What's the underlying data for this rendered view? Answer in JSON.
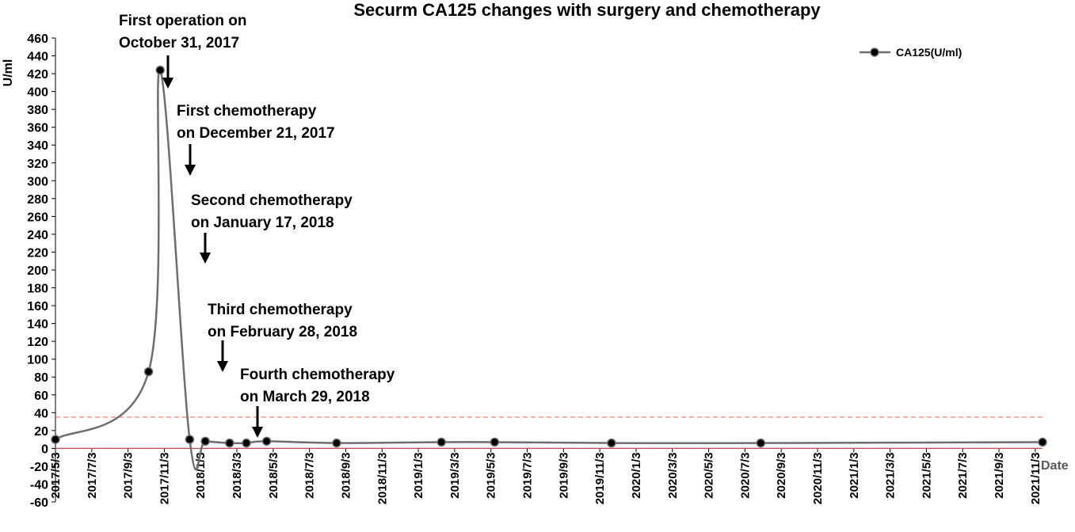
{
  "chart_data": {
    "type": "line",
    "title": "Securm CA125 changes with surgery and chemotherapy",
    "ylabel": "U/ml",
    "xlabel": "Date",
    "ylim": [
      -60,
      460
    ],
    "yticks": [
      460,
      440,
      420,
      400,
      380,
      360,
      340,
      320,
      300,
      280,
      260,
      240,
      220,
      200,
      180,
      160,
      140,
      120,
      100,
      80,
      60,
      40,
      20,
      0,
      -20,
      -40,
      -60
    ],
    "xtick_labels": [
      "2017/5/3",
      "2017/7/3",
      "2017/9/3",
      "2017/11/3",
      "2018/1/3",
      "2018/3/3",
      "2018/5/3",
      "2018/7/3",
      "2018/9/3",
      "2018/11/3",
      "2019/1/3",
      "2019/3/3",
      "2019/5/3",
      "2019/7/3",
      "2019/9/3",
      "2019/11/3",
      "2020/1/3",
      "2020/3/3",
      "2020/5/3",
      "2020/7/3",
      "2020/9/3",
      "2020/11/3",
      "2021/1/3",
      "2021/3/3",
      "2021/5/3",
      "2021/7/3",
      "2021/9/3",
      "2021/11/3"
    ],
    "xlim": [
      "2017-05-03",
      "2022-01-03"
    ],
    "grid": false,
    "legend_position": "top-right",
    "reference_lines": [
      {
        "y": 35,
        "style": "dashed",
        "color": "#e8716f"
      },
      {
        "y": 0,
        "style": "solid",
        "color": "#c0504d"
      }
    ],
    "series": [
      {
        "name": "CA125(U/ml)",
        "color": "#6e6e6e",
        "points": [
          {
            "x": "2017-05-03",
            "y": 10
          },
          {
            "x": "2017-10-11",
            "y": 86
          },
          {
            "x": "2017-10-31",
            "y": 424
          },
          {
            "x": "2017-12-21",
            "y": 10
          },
          {
            "x": "2018-01-17",
            "y": 8
          },
          {
            "x": "2018-02-28",
            "y": 6
          },
          {
            "x": "2018-03-29",
            "y": 6
          },
          {
            "x": "2018-05-03",
            "y": 8
          },
          {
            "x": "2018-09-01",
            "y": 6
          },
          {
            "x": "2019-03-01",
            "y": 7
          },
          {
            "x": "2019-06-01",
            "y": 7
          },
          {
            "x": "2019-12-20",
            "y": 6
          },
          {
            "x": "2020-09-03",
            "y": 6
          },
          {
            "x": "2022-01-03",
            "y": 7
          }
        ]
      }
    ],
    "annotations": [
      {
        "lines": [
          "First operation on",
          "October 31, 2017"
        ],
        "arrow_date": "2017-10-31"
      },
      {
        "lines": [
          "First chemotherapy",
          "on December 21, 2017"
        ],
        "arrow_date": "2017-12-21"
      },
      {
        "lines": [
          "Second chemotherapy",
          "on January 17, 2018"
        ],
        "arrow_date": "2018-01-17"
      },
      {
        "lines": [
          "Third chemotherapy",
          "on February 28, 2018"
        ],
        "arrow_date": "2018-02-28"
      },
      {
        "lines": [
          "Fourth chemotherapy",
          "on March 29, 2018"
        ],
        "arrow_date": "2018-03-29"
      }
    ]
  }
}
